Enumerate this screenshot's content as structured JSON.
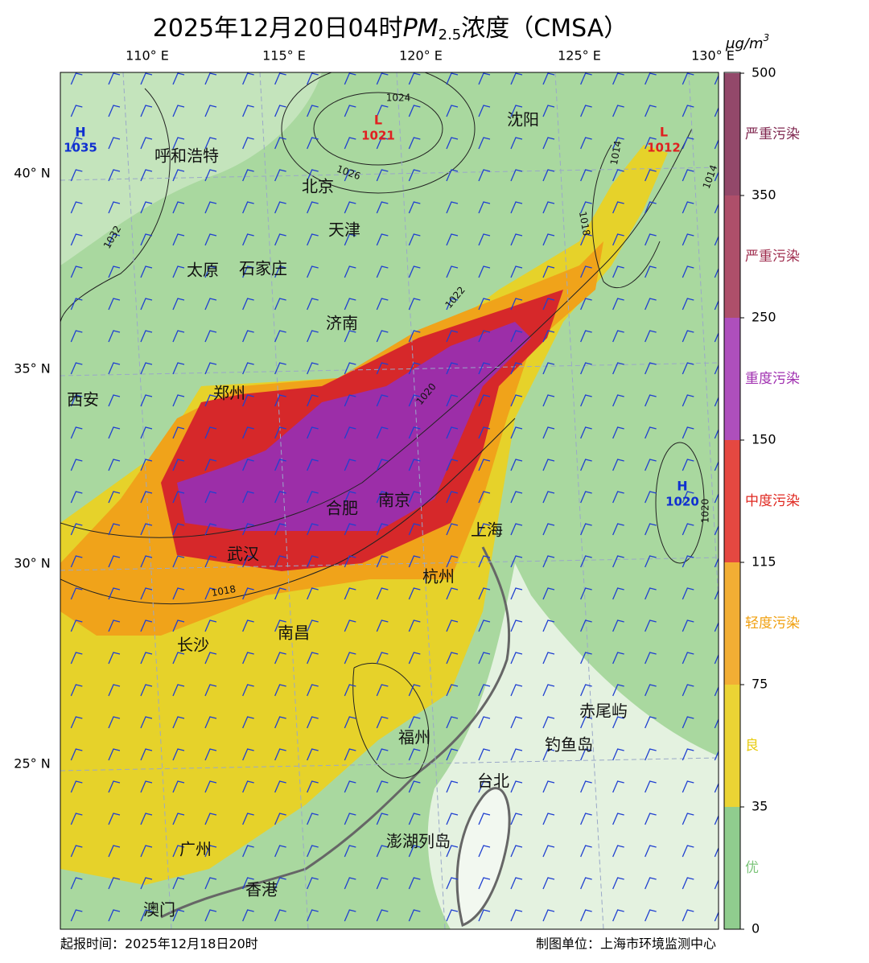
{
  "header": {
    "title_prefix": "2025年12月20日04时",
    "title_pm": "PM",
    "title_sub": "2.5",
    "title_suffix": "浓度（CMSA）",
    "unit": "μg/m",
    "unit_sup": "3"
  },
  "map": {
    "lon_ticks": [
      {
        "value": 110,
        "label": "110° E"
      },
      {
        "value": 115,
        "label": "115° E"
      },
      {
        "value": 120,
        "label": "120° E"
      },
      {
        "value": 125,
        "label": "125° E"
      },
      {
        "value": 130,
        "label": "130° E"
      }
    ],
    "lat_ticks": [
      {
        "value": 40,
        "label": "40° N"
      },
      {
        "value": 35,
        "label": "35° N"
      },
      {
        "value": 30,
        "label": "30° N"
      },
      {
        "value": 25,
        "label": "25° N"
      }
    ],
    "cities": [
      "呼和浩特",
      "沈阳",
      "北京",
      "天津",
      "太原",
      "石家庄",
      "济南",
      "西安",
      "郑州",
      "合肥",
      "南京",
      "上海",
      "武汉",
      "杭州",
      "长沙",
      "南昌",
      "赤尾屿",
      "钓鱼岛",
      "福州",
      "台北",
      "澎湖列岛",
      "广州",
      "香港",
      "澳门"
    ],
    "pressure_centers": [
      {
        "letter": "H",
        "value": 1035,
        "color": "#1030d0"
      },
      {
        "letter": "L",
        "value": 1021,
        "color": "#e02020"
      },
      {
        "letter": "L",
        "value": 1012,
        "color": "#e02020"
      },
      {
        "letter": "H",
        "value": 1020,
        "color": "#1030d0"
      }
    ],
    "isobar_labels": [
      1024,
      1026,
      1032,
      1022,
      1020,
      1018,
      1018,
      1014,
      1014,
      1020
    ]
  },
  "colorbar": {
    "ticks": [
      0,
      35,
      75,
      115,
      150,
      250,
      350,
      500
    ],
    "levels": [
      {
        "label": "优",
        "color": "#7cc47a"
      },
      {
        "label": "良",
        "color": "#e8cc10"
      },
      {
        "label": "轻度污染",
        "color": "#f0a010"
      },
      {
        "label": "中度污染",
        "color": "#e02820"
      },
      {
        "label": "重度污染",
        "color": "#a030b0"
      },
      {
        "label": "严重污染",
        "color": "#a03050"
      },
      {
        "label": "严重污染",
        "color": "#802850"
      }
    ]
  },
  "footer": {
    "issue_time": "起报时间：2025年12月18日20时",
    "producer": "制图单位：上海市环境监测中心"
  }
}
